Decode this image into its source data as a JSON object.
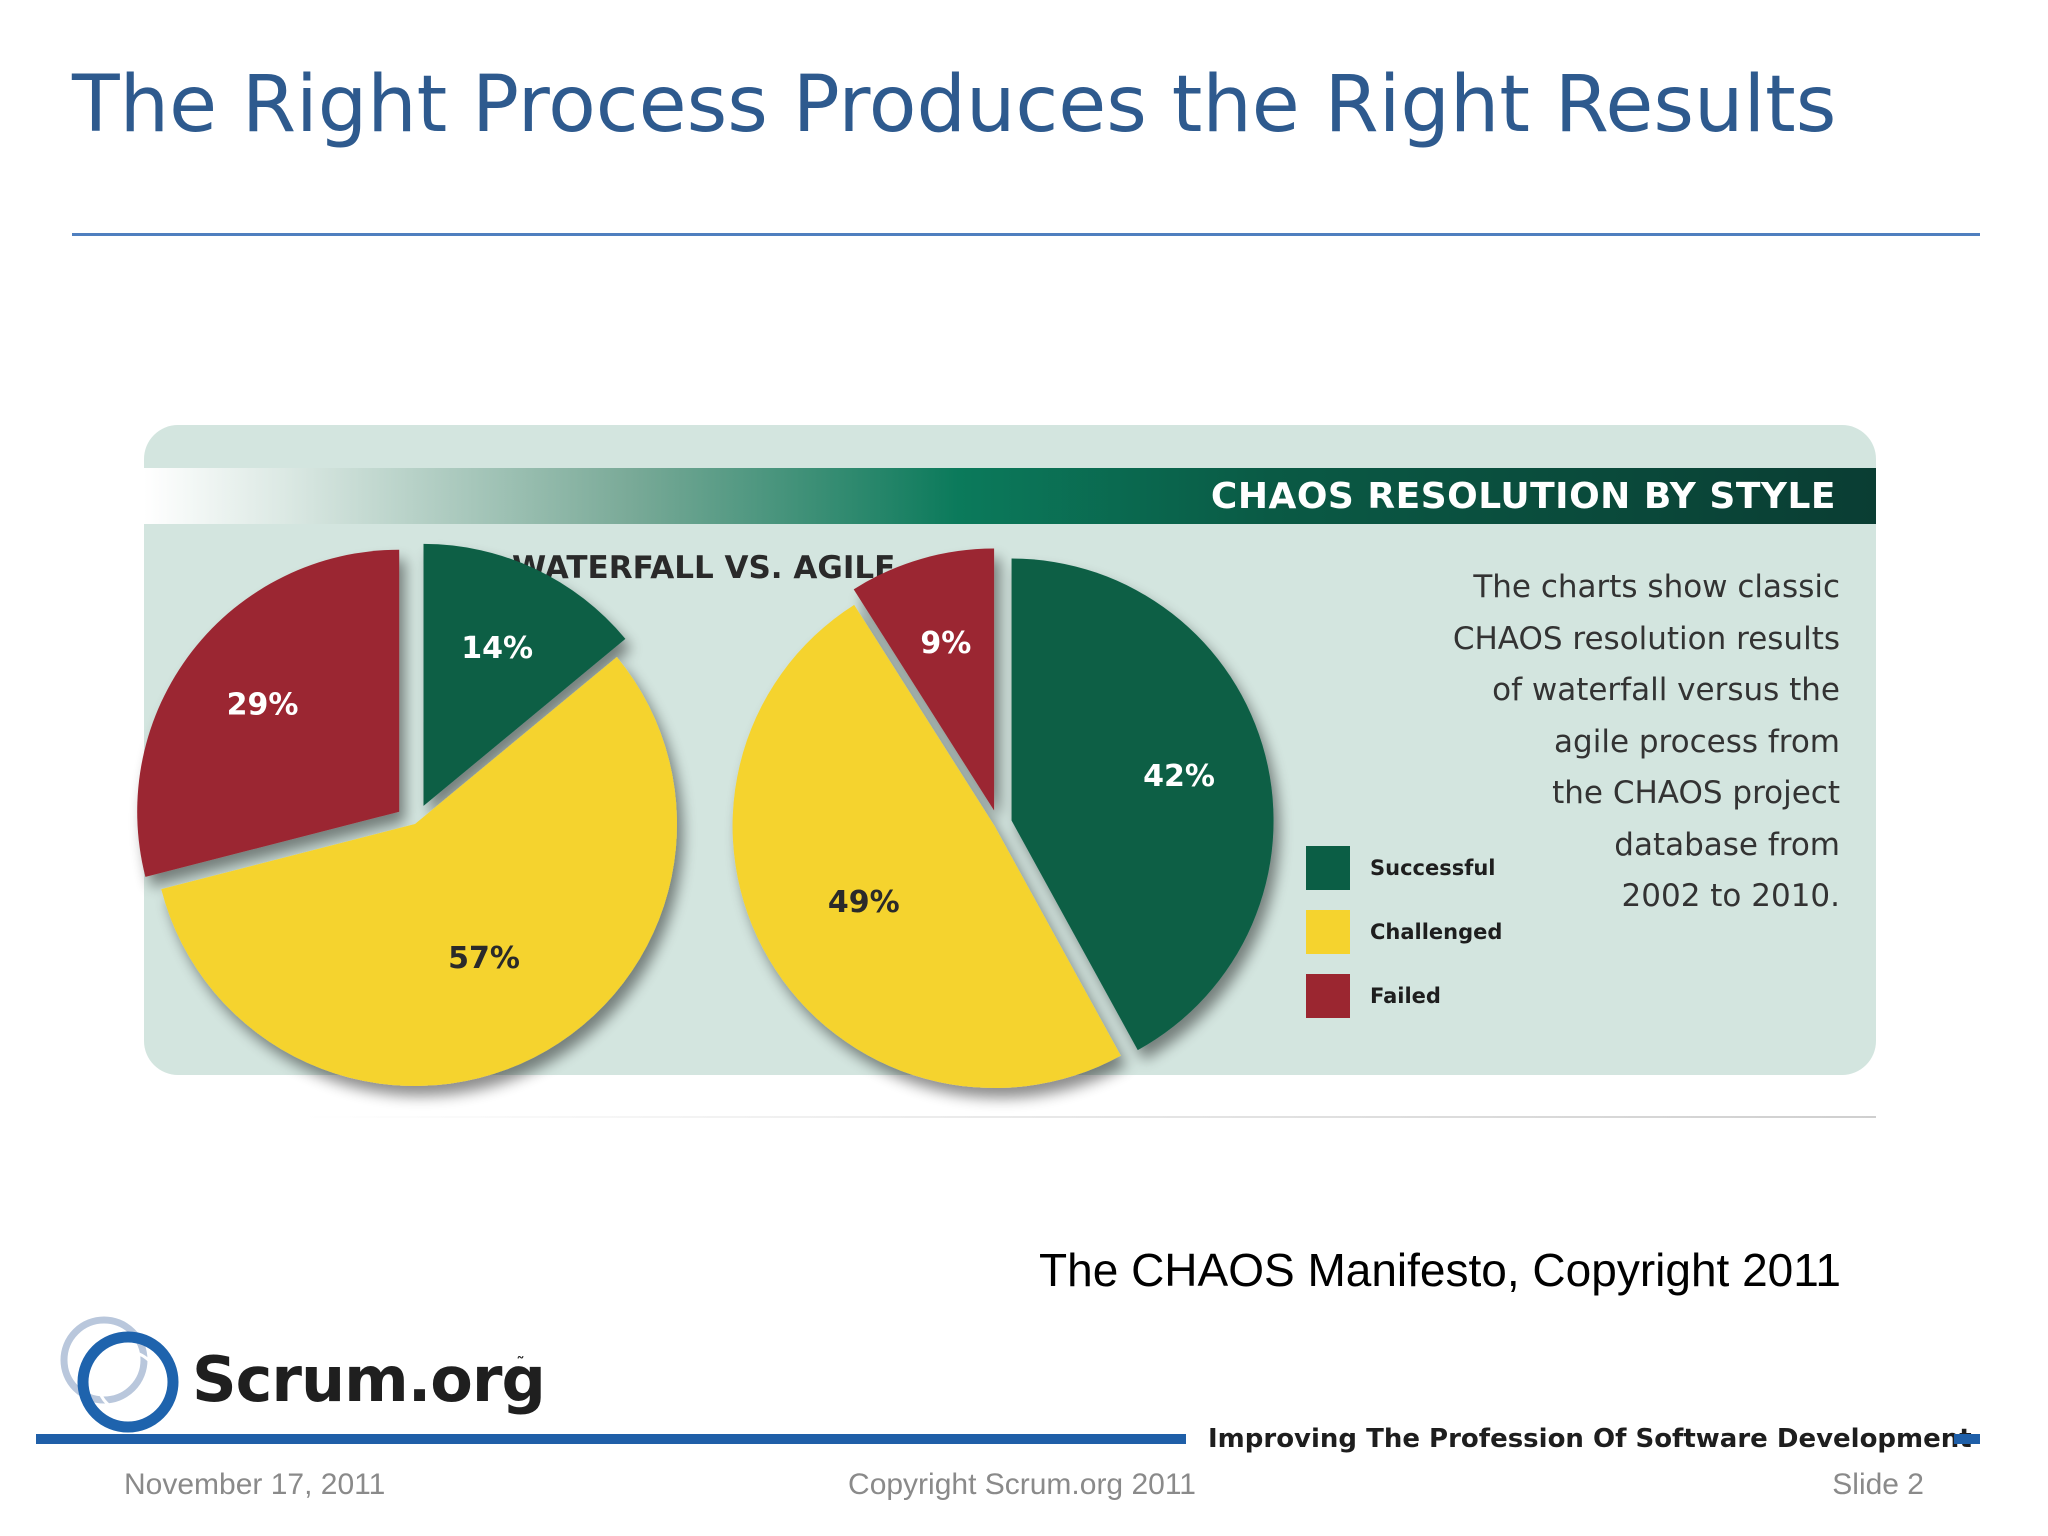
{
  "slide": {
    "title": "The Right Process Produces the Right Results",
    "source_caption": "The CHAOS Manifesto, Copyright 2011"
  },
  "chart": {
    "banner_title": "CHAOS RESOLUTION BY STYLE",
    "subtitle": "WATERFALL VS. AGILE",
    "description": "The charts show classic CHAOS resolution results of waterfall versus the agile process from the CHAOS project database from 2002 to 2010.",
    "legend": [
      {
        "label": "Successful",
        "color": "#0b5e45"
      },
      {
        "label": "Challenged",
        "color": "#f5d32e"
      },
      {
        "label": "Failed",
        "color": "#9b2630"
      }
    ]
  },
  "chart_data": {
    "type": "pie",
    "title": "CHAOS RESOLUTION BY STYLE",
    "subtitle": "WATERFALL VS. AGILE",
    "categories": [
      "Successful",
      "Challenged",
      "Failed"
    ],
    "series": [
      {
        "name": "Waterfall",
        "values": [
          14,
          57,
          29
        ],
        "labels": [
          "14%",
          "57%",
          "29%"
        ]
      },
      {
        "name": "Agile",
        "values": [
          42,
          49,
          9
        ],
        "labels": [
          "42%",
          "49%",
          "9%"
        ]
      }
    ],
    "colors": [
      "#0b5e45",
      "#f5d32e",
      "#9b2630"
    ]
  },
  "branding": {
    "logo_text": "Scrum.org",
    "logo_tm": "˜",
    "tagline": "Improving The Profession Of Software Development"
  },
  "footer": {
    "date": "November 17, 2011",
    "copyright": "Copyright Scrum.org 2011",
    "slide_number": "Slide 2"
  }
}
